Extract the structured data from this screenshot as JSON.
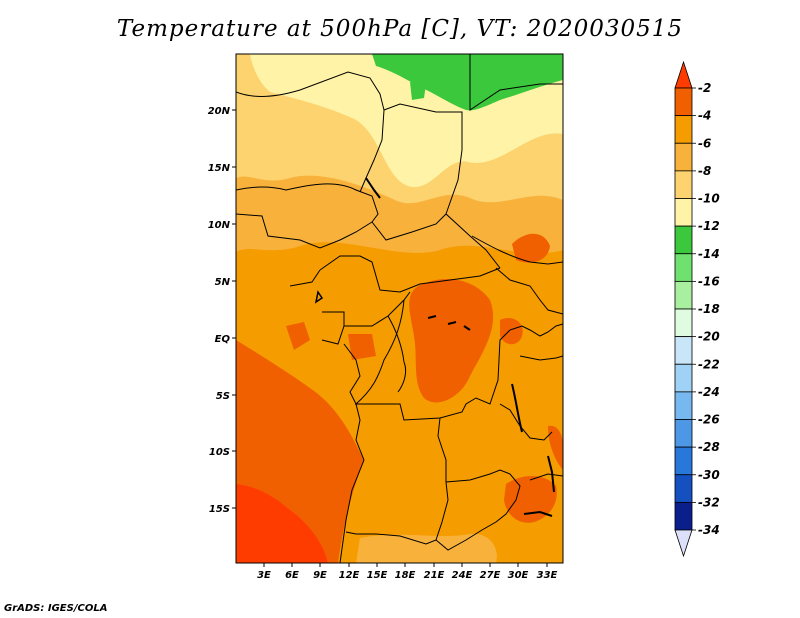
{
  "title": "Temperature at 500hPa [C], VT: 2020030515",
  "credit": "GrADS: IGES/COLA",
  "map": {
    "lat_labels": [
      "20N",
      "15N",
      "10N",
      "5N",
      "EQ",
      "5S",
      "10S",
      "15S"
    ],
    "lon_labels": [
      "3E",
      "6E",
      "9E",
      "12E",
      "15E",
      "18E",
      "21E",
      "24E",
      "27E",
      "30E",
      "33E"
    ]
  },
  "colorbar": {
    "labels": [
      "-2",
      "-4",
      "-6",
      "-8",
      "-10",
      "-12",
      "-14",
      "-16",
      "-18",
      "-20",
      "-22",
      "-24",
      "-26",
      "-28",
      "-30",
      "-32",
      "-34"
    ],
    "colors": [
      "#ff3c00",
      "#f06000",
      "#f59c00",
      "#f8b23c",
      "#fcd36e",
      "#fef3a6",
      "#3cc83c",
      "#6ee16e",
      "#a8f0a0",
      "#e0fce0",
      "#c8e6f8",
      "#a0d2f6",
      "#78b8f0",
      "#4c98e6",
      "#2878dc",
      "#1450c0",
      "#0a1e8c",
      "#dce0f8"
    ]
  }
}
